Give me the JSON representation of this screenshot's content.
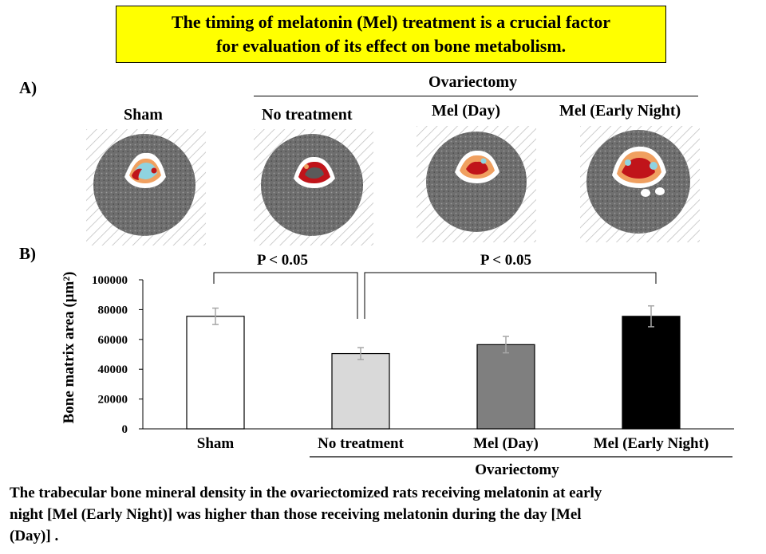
{
  "title": {
    "line1": "The timing of melatonin (Mel) treatment is a crucial factor",
    "line2": "for evaluation of its effect on bone metabolism."
  },
  "panel_a": {
    "label": "A)",
    "group_label": "Ovariectomy",
    "images": [
      {
        "label": "Sham"
      },
      {
        "label": "No treatment"
      },
      {
        "label": "Mel (Day)"
      },
      {
        "label": "Mel (Early Night)"
      }
    ]
  },
  "panel_b": {
    "label": "B)"
  },
  "chart_data": {
    "type": "bar",
    "ylabel": "Bone matrix area (μm²)",
    "ylim": [
      0,
      100000
    ],
    "yticks": [
      "0",
      "20000",
      "40000",
      "60000",
      "80000",
      "100000"
    ],
    "categories": [
      "Sham",
      "No treatment",
      "Mel (Day)",
      "Mel (Early Night)"
    ],
    "values": [
      75500,
      50500,
      56500,
      75500
    ],
    "errors": [
      5500,
      4000,
      5500,
      7000
    ],
    "bar_colors": [
      "#ffffff",
      "#d9d9d9",
      "#7f7f7f",
      "#000000"
    ],
    "group_label": "Ovariectomy",
    "annotations": [
      {
        "text": "P < 0.05",
        "from": "Sham",
        "to": "No treatment"
      },
      {
        "text": "P < 0.05",
        "from": "No treatment",
        "to": "Mel (Early Night)"
      }
    ]
  },
  "caption": {
    "line1": "The trabecular bone mineral density in the ovariectomized rats receiving melatonin at early",
    "line2": "night [Mel (Early Night)] was higher than those receiving melatonin during the day [Mel",
    "line3": "(Day)] ."
  }
}
